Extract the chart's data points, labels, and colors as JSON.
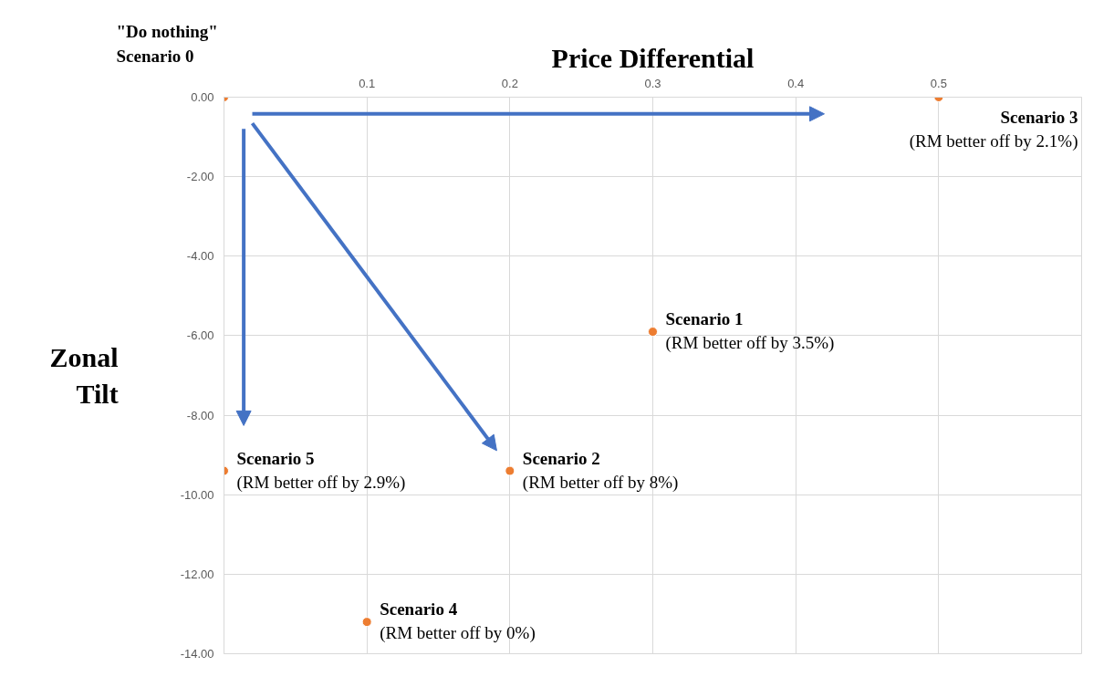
{
  "chart_data": {
    "type": "scatter",
    "xlabel": "Price Differential",
    "ylabel": "Zonal Tilt",
    "x": [
      0,
      0.5,
      0.3,
      0.2,
      0,
      0.1
    ],
    "series": [
      {
        "color": "#ed7d31",
        "values": [
          0,
          0,
          -5.9,
          -9.4,
          -9.4,
          -13.2
        ]
      }
    ],
    "marker": "circle",
    "xlim": [
      0,
      0.6
    ],
    "xticks": [
      0.1,
      0.2,
      0.3,
      0.4,
      0.5
    ],
    "ylim": [
      -14,
      0
    ],
    "yticks": [
      {
        "value": 0,
        "label": "0.00"
      },
      {
        "value": -2,
        "label": "-2.00"
      },
      {
        "value": -4,
        "label": "-4.00"
      },
      {
        "value": -6,
        "label": "-6.00"
      },
      {
        "value": -8,
        "label": "-8.00"
      },
      {
        "value": -10,
        "label": "-10.00"
      },
      {
        "value": -12,
        "label": "-12.00"
      },
      {
        "value": -14,
        "label": "-14.00"
      }
    ],
    "grid": true,
    "annotations": [
      {
        "text": "\"Do nothing\"\nScenario 0",
        "x": 0,
        "y": 0
      },
      {
        "text": "Scenario 3\n(RM better off by 2.1%)",
        "x": 0.5,
        "y": 0
      },
      {
        "text": "Scenario 1\n(RM better off by 3.5%)",
        "x": 0.3,
        "y": -5.9
      },
      {
        "text": "Scenario 2\n(RM better off by 8%)",
        "x": 0.2,
        "y": -9.4
      },
      {
        "text": "Scenario 5\n(RM better off by 2.9%)",
        "x": 0,
        "y": -9.4
      },
      {
        "text": "Scenario 4\n(RM better off by 0%)",
        "x": 0.1,
        "y": -13.2
      }
    ]
  }
}
